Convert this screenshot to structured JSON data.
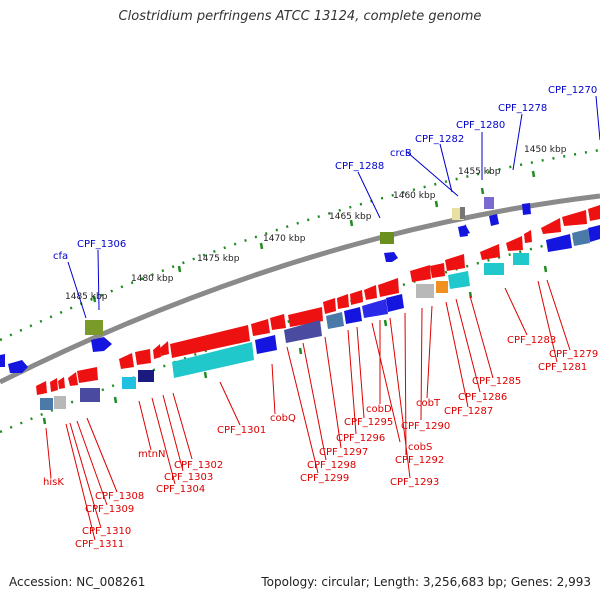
{
  "title": "Clostridium perfringens ATCC 13124, complete genome",
  "accession": "Accession: NC_008261",
  "topology": "Topology: circular; Length: 3,256,683 bp; Genes: 2,993",
  "colors": {
    "backbone": "#8a8a8a",
    "tick": "#228b22",
    "forward_label": "#0000cc",
    "reverse_label": "#dd0000",
    "forward_gene": "#1515e0",
    "reverse_gene": "#ee1111"
  },
  "scale_labels": [
    "1450 kbp",
    "1455 kbp",
    "1460 kbp",
    "1465 kbp",
    "1470 kbp",
    "1475 kbp",
    "1480 kbp",
    "1485 kbp"
  ],
  "forward_labels": [
    "CPF_1270",
    "CPF_1278",
    "CPF_1280",
    "CPF_1282",
    "crcB",
    "CPF_1288",
    "CPF_1306",
    "cfa"
  ],
  "reverse_labels": [
    "CPF_1279",
    "CPF_1281",
    "CPF_1283",
    "CPF_1285",
    "CPF_1286",
    "CPF_1287",
    "cobT",
    "CPF_1290",
    "CPF_1292",
    "CPF_1293",
    "cobD",
    "cobS",
    "CPF_1295",
    "CPF_1296",
    "CPF_1297",
    "CPF_1298",
    "CPF_1299",
    "cobQ",
    "CPF_1301",
    "CPF_1302",
    "CPF_1303",
    "CPF_1304",
    "mtnN",
    "CPF_1308",
    "CPF_1309",
    "CPF_1310",
    "CPF_1311",
    "hisK"
  ]
}
